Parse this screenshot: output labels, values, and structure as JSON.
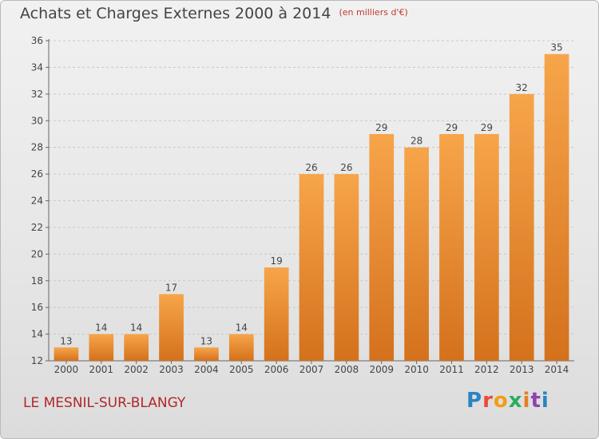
{
  "header": {
    "title": "Achats et Charges Externes 2000 à 2014",
    "unit": "(en milliers d'€)"
  },
  "footer": {
    "place": "LE MESNIL-SUR-BLANGY",
    "logo": [
      "P",
      "r",
      "o",
      "x",
      "i",
      "t",
      "i"
    ]
  },
  "colors": {
    "bar_light": "#f7a54a",
    "bar_dark": "#d4711c",
    "title": "#444444",
    "place": "#b0272a"
  },
  "chart_data": {
    "type": "bar",
    "title": "Achats et Charges Externes 2000 à 2014",
    "subtitle": "(en milliers d'€)",
    "categories": [
      "2000",
      "2001",
      "2002",
      "2003",
      "2004",
      "2005",
      "2006",
      "2007",
      "2008",
      "2009",
      "2010",
      "2011",
      "2012",
      "2013",
      "2014"
    ],
    "values": [
      13,
      14,
      14,
      17,
      13,
      14,
      19,
      26,
      26,
      29,
      28,
      29,
      29,
      32,
      35
    ],
    "ylim": [
      12,
      36
    ],
    "yticks": [
      12,
      14,
      16,
      18,
      20,
      22,
      24,
      26,
      28,
      30,
      32,
      34,
      36
    ],
    "grid": true,
    "data_labels": true
  }
}
